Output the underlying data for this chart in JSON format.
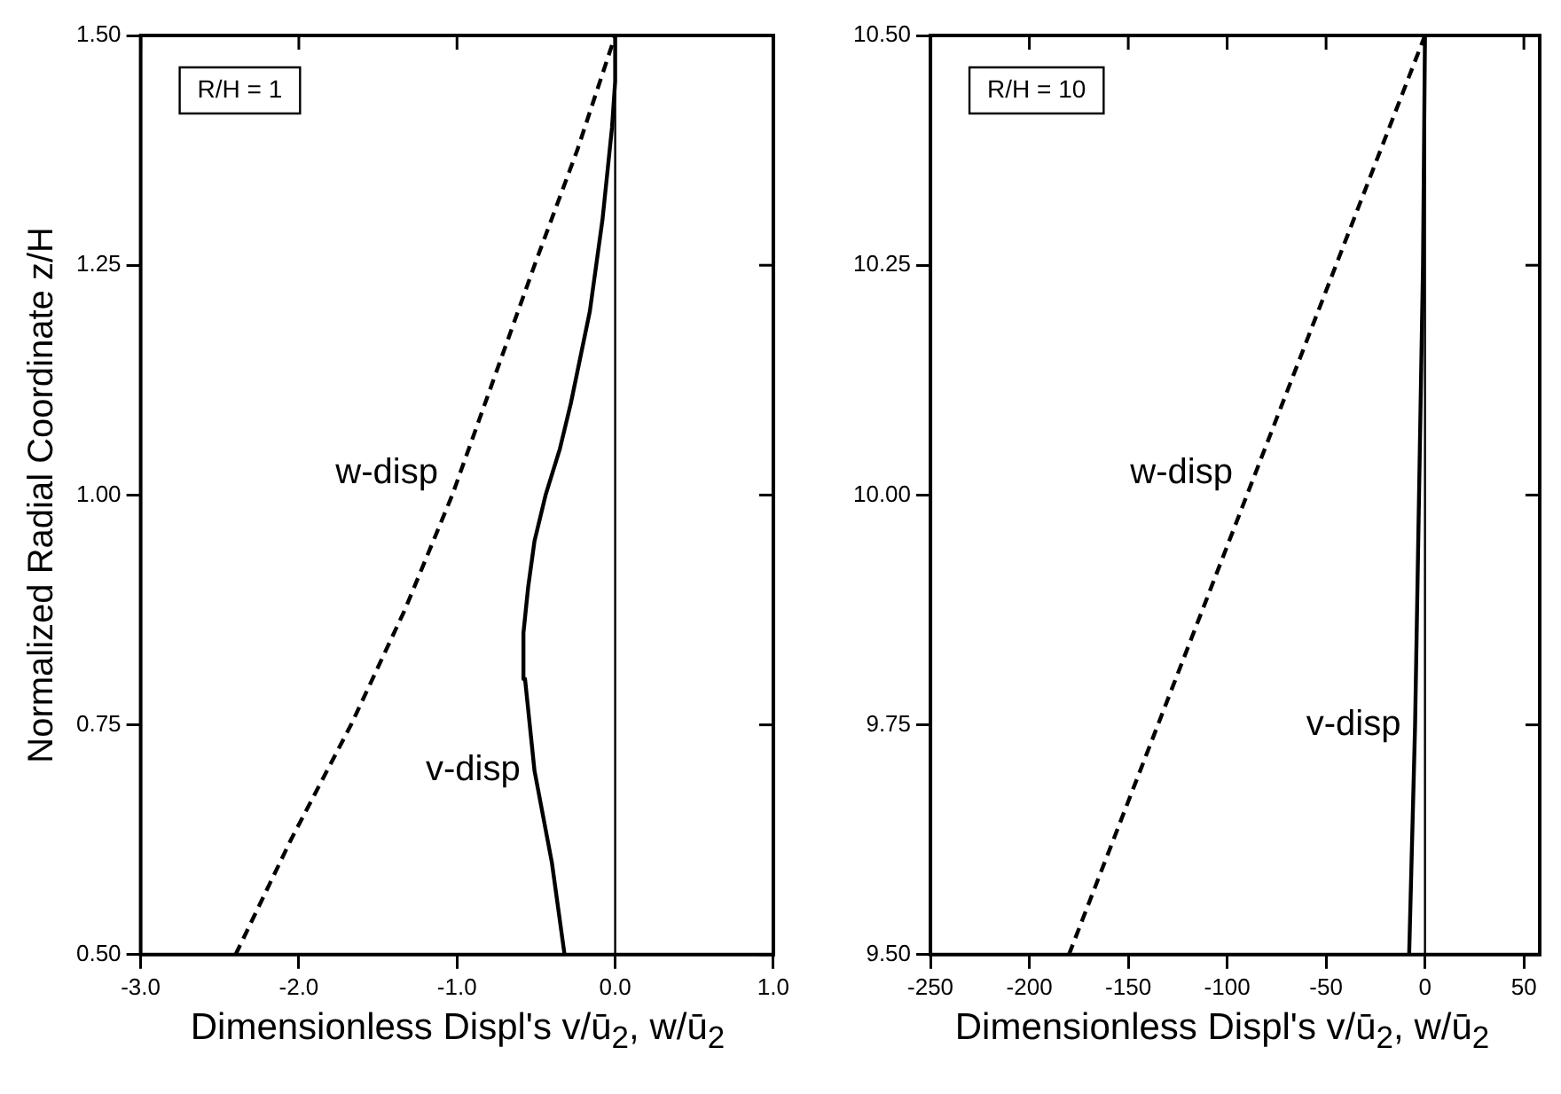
{
  "chart_data": [
    {
      "type": "line",
      "xlabel": "Dimensionless Displ's v/ū$_{2}$, w/ū$_{2}$",
      "ylabel": "Normalized Radial Coordinate z/H",
      "marker": "none",
      "xlim": [
        -3,
        1
      ],
      "xticks": [
        {
          "value": -3,
          "label": "-3.0"
        },
        {
          "value": -2,
          "label": "-2.0"
        },
        {
          "value": -1,
          "label": "-1.0"
        },
        {
          "value": 0,
          "label": "0.0"
        },
        {
          "value": 1,
          "label": "1.0"
        }
      ],
      "ylim": [
        0.5,
        1.5
      ],
      "yticks": [
        {
          "value": 0.5,
          "label": "0.50"
        },
        {
          "value": 0.75,
          "label": "0.75"
        },
        {
          "value": 1,
          "label": "1.00"
        },
        {
          "value": 1.25,
          "label": "1.25"
        },
        {
          "value": 1.5,
          "label": "1.50"
        }
      ],
      "series": [
        {
          "name": "w-disp",
          "color": "#000000",
          "line_style": "dashed",
          "x": [
            -2.4,
            -2.05,
            -1.67,
            -1.33,
            -1.03,
            -0.77,
            -0.51,
            -0.24,
            0
          ],
          "values": [
            0.5,
            0.625,
            0.75,
            0.875,
            1.0,
            1.125,
            1.25,
            1.375,
            1.5
          ]
        },
        {
          "name": "v-disp",
          "color": "#000000",
          "line_style": "solid",
          "x": [
            -0.32,
            -0.4,
            -0.51,
            -0.57,
            -0.58,
            -0.55,
            -0.51,
            -0.44,
            -0.35,
            -0.28,
            -0.16,
            -0.08,
            -0.02,
            0,
            0
          ],
          "values": [
            0.5,
            0.6,
            0.7,
            0.8,
            0.85,
            0.9,
            0.95,
            1.0,
            1.05,
            1.1,
            1.2,
            1.3,
            1.4,
            1.45,
            1.5
          ]
        }
      ],
      "ref_lines": [
        {
          "axis": "x",
          "value": 0,
          "color": "#000000"
        }
      ],
      "annotations": [
        "R/H = 1"
      ]
    },
    {
      "type": "line",
      "xlabel": "Dimensionless Displ's v/ū$_{2}$, w/ū$_{2}$",
      "marker": "none",
      "xlim": [
        -250,
        58
      ],
      "xticks": [
        -250,
        -200,
        -150,
        -100,
        -50,
        0,
        50
      ],
      "ylim": [
        9.5,
        10.5
      ],
      "yticks": [
        {
          "value": 9.5,
          "label": "9.50"
        },
        {
          "value": 9.75,
          "label": "9.75"
        },
        {
          "value": 10,
          "label": "10.00"
        },
        {
          "value": 10.25,
          "label": "10.25"
        },
        {
          "value": 10.5,
          "label": "10.50"
        }
      ],
      "series": [
        {
          "name": "w-disp",
          "color": "#000000",
          "line_style": "dashed",
          "x": [
            -180,
            -90,
            0
          ],
          "values": [
            9.5,
            10.0,
            10.5
          ]
        },
        {
          "name": "v-disp",
          "color": "#000000",
          "line_style": "solid",
          "x": [
            -8,
            -5,
            -3,
            -1,
            0
          ],
          "values": [
            9.5,
            9.75,
            10.0,
            10.25,
            10.5
          ]
        }
      ],
      "ref_lines": [
        {
          "axis": "x",
          "value": 0,
          "color": "#000000"
        }
      ],
      "annotations": [
        "R/H = 10"
      ]
    }
  ]
}
